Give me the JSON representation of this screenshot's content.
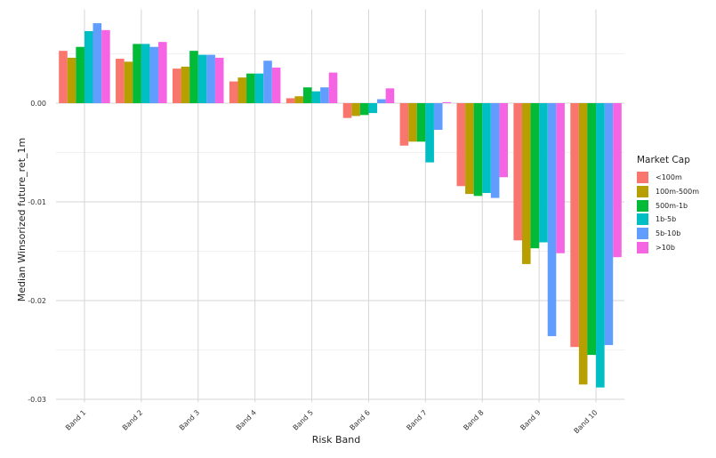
{
  "chart_data": {
    "type": "bar",
    "xlabel": "Risk Band",
    "ylabel": "Median Winsorized future_ret_1m",
    "ylim": [
      -0.0303,
      0.0095
    ],
    "yticks": [
      0.0,
      -0.01,
      -0.02,
      -0.03
    ],
    "ytick_labels": [
      "0.00",
      "-0.01",
      "-0.02",
      "-0.03"
    ],
    "grid": true,
    "legend_position": "right",
    "legend_title": "Market Cap",
    "categories": [
      "Band 1",
      "Band 2",
      "Band 3",
      "Band 4",
      "Band 5",
      "Band 6",
      "Band 7",
      "Band 8",
      "Band 9",
      "Band 10"
    ],
    "series": [
      {
        "name": "<100m",
        "color": "#F8766D",
        "values": [
          0.0053,
          0.0045,
          0.0035,
          0.0022,
          0.0005,
          -0.0015,
          -0.0043,
          -0.0084,
          -0.0139,
          -0.0247
        ]
      },
      {
        "name": "100m-500m",
        "color": "#B79F00",
        "values": [
          0.0046,
          0.0042,
          0.0037,
          0.0026,
          0.0007,
          -0.0013,
          -0.0039,
          -0.0092,
          -0.0163,
          -0.0285
        ]
      },
      {
        "name": "500m-1b",
        "color": "#00BA38",
        "values": [
          0.0057,
          0.006,
          0.0053,
          0.003,
          0.0016,
          -0.0012,
          -0.0039,
          -0.0094,
          -0.0147,
          -0.0255
        ]
      },
      {
        "name": "1b-5b",
        "color": "#00BFC4",
        "values": [
          0.0073,
          0.006,
          0.0049,
          0.003,
          0.0012,
          -0.001,
          -0.006,
          -0.0091,
          -0.0141,
          -0.0288
        ]
      },
      {
        "name": "5b-10b",
        "color": "#619CFF",
        "values": [
          0.0081,
          0.0057,
          0.0049,
          0.0043,
          0.0016,
          0.0004,
          -0.0027,
          -0.0096,
          -0.0236,
          -0.0245
        ]
      },
      {
        "name": ">10b",
        "color": "#F564E3",
        "values": [
          0.0074,
          0.0062,
          0.0046,
          0.0036,
          0.0031,
          0.0015,
          0.0001,
          -0.0075,
          -0.0152,
          -0.0156
        ]
      }
    ]
  }
}
